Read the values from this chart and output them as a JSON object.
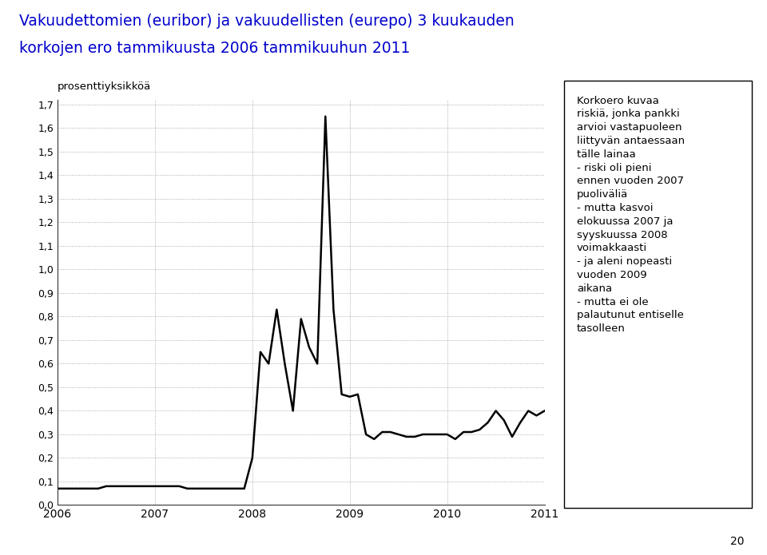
{
  "title_line1": "Vakuudettomien (euribor) ja vakuudellisten (eurepo) 3 kuukauden",
  "title_line2": "korkojen ero tammikuusta 2006 tammikuuhun 2011",
  "ylabel": "prosenttiyksikköä",
  "title_color": "#0000CC",
  "ylim": [
    0.0,
    1.7
  ],
  "yticks": [
    0.0,
    0.1,
    0.2,
    0.3,
    0.4,
    0.5,
    0.6,
    0.7,
    0.8,
    0.9,
    1.0,
    1.1,
    1.2,
    1.3,
    1.4,
    1.5,
    1.6,
    1.7
  ],
  "page_number": "20",
  "annotation_text": "Korkoero kuvaa\nriskiä, jonka pankki\narvioi vastapuoleen\nliittyvän antaessaan\ntälle lainaa\n- riski oli pieni\nennen vuoden 2007\npuoliväliä\n- mutta kasvoi\nelokuussa 2007 ja\nsyyskuussa 2008\nvoimakkaasti\n- ja aleni nopeasti\nvuoden 2009\naikana\n- mutta ei ole\npalautunut entiselle\ntasolleen",
  "x_data": [
    2006.0,
    2006.083,
    2006.167,
    2006.25,
    2006.333,
    2006.417,
    2006.5,
    2006.583,
    2006.667,
    2006.75,
    2006.833,
    2006.917,
    2007.0,
    2007.083,
    2007.167,
    2007.25,
    2007.333,
    2007.417,
    2007.5,
    2007.583,
    2007.667,
    2007.75,
    2007.833,
    2007.917,
    2008.0,
    2008.083,
    2008.167,
    2008.25,
    2008.333,
    2008.417,
    2008.5,
    2008.583,
    2008.667,
    2008.75,
    2008.833,
    2008.917,
    2009.0,
    2009.083,
    2009.167,
    2009.25,
    2009.333,
    2009.417,
    2009.5,
    2009.583,
    2009.667,
    2009.75,
    2009.833,
    2009.917,
    2010.0,
    2010.083,
    2010.167,
    2010.25,
    2010.333,
    2010.417,
    2010.5,
    2010.583,
    2010.667,
    2010.75,
    2010.833,
    2010.917,
    2011.0
  ],
  "y_data": [
    0.07,
    0.07,
    0.07,
    0.07,
    0.07,
    0.07,
    0.08,
    0.08,
    0.08,
    0.08,
    0.08,
    0.08,
    0.08,
    0.08,
    0.08,
    0.08,
    0.07,
    0.07,
    0.07,
    0.07,
    0.07,
    0.07,
    0.07,
    0.07,
    0.2,
    0.65,
    0.6,
    0.83,
    0.6,
    0.4,
    0.79,
    0.67,
    0.6,
    1.65,
    0.83,
    0.47,
    0.46,
    0.47,
    0.3,
    0.28,
    0.31,
    0.31,
    0.3,
    0.29,
    0.29,
    0.3,
    0.3,
    0.3,
    0.3,
    0.28,
    0.31,
    0.31,
    0.32,
    0.35,
    0.4,
    0.36,
    0.29,
    0.35,
    0.4,
    0.38,
    0.4
  ],
  "line_color": "#000000",
  "bg_color": "#ffffff",
  "grid_color": "#999999"
}
